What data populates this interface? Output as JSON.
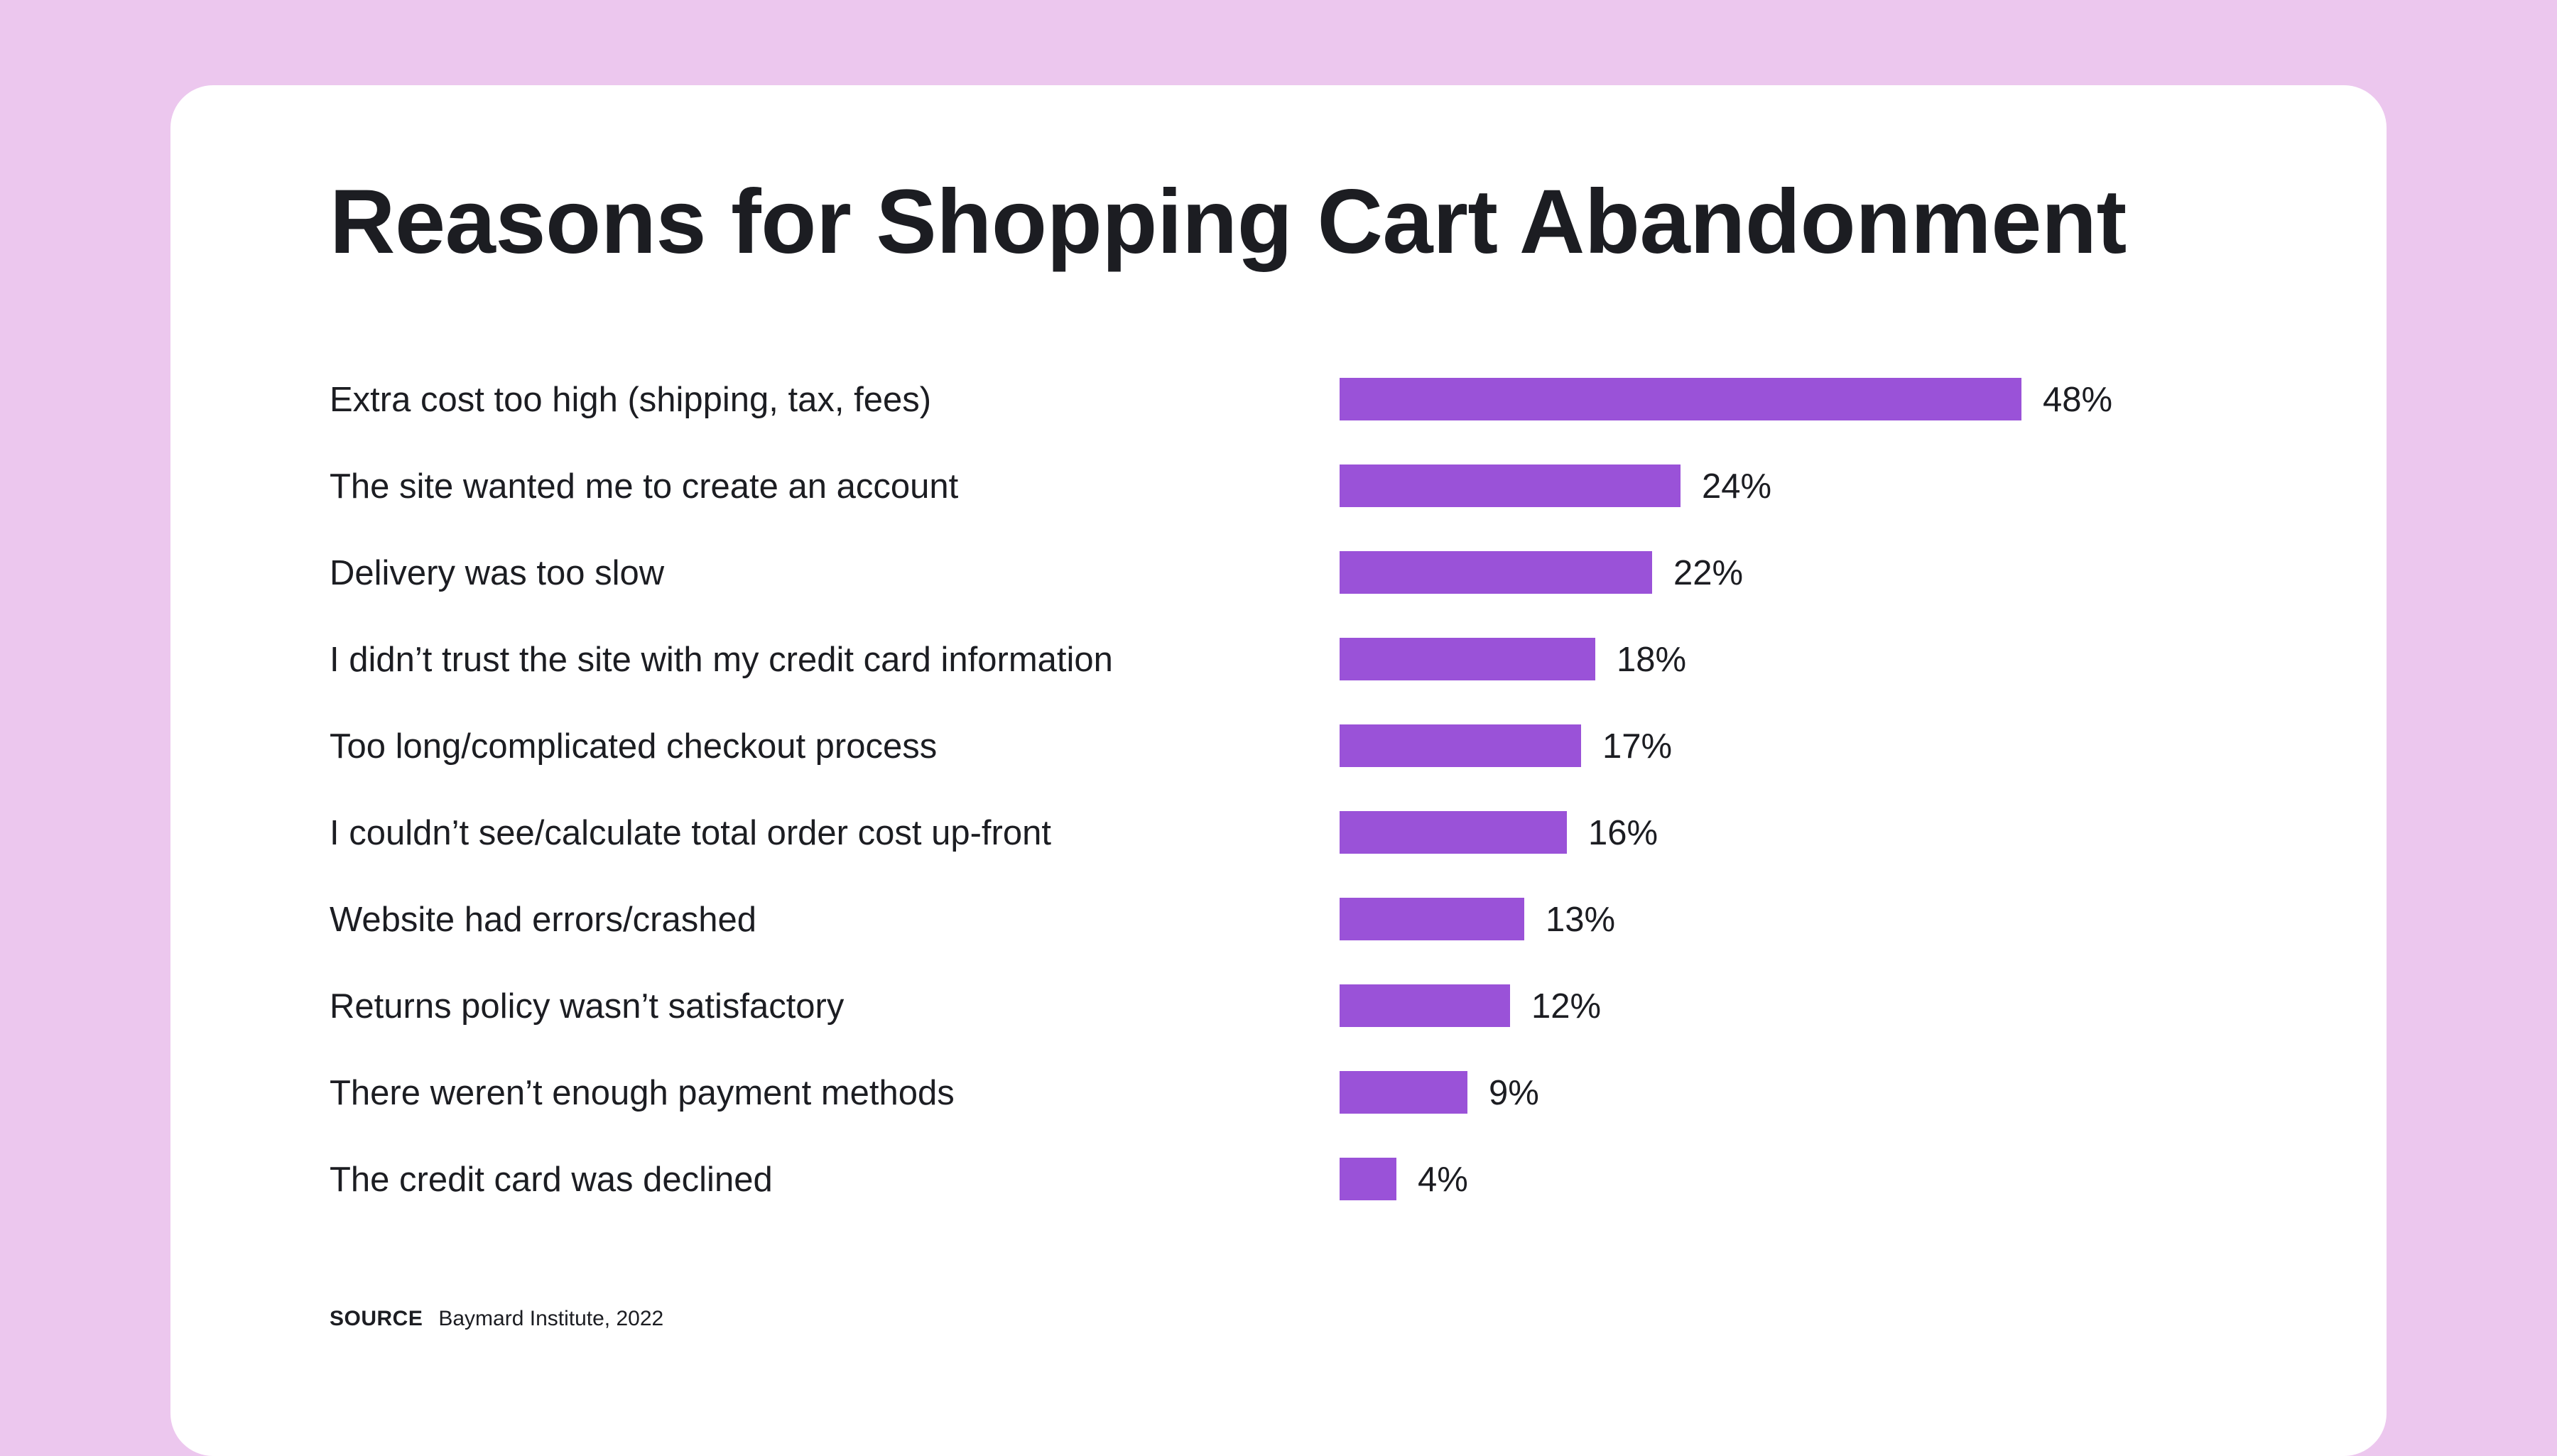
{
  "colors": {
    "page_background": "#ecc7ee",
    "card": "#ffffff",
    "bar": "#9a52d8",
    "text": "#1c1d22"
  },
  "chart_data": {
    "type": "bar",
    "orientation": "horizontal",
    "title": "Reasons for Shopping Cart Abandonment",
    "xlabel": "",
    "ylabel": "",
    "xlim": [
      0,
      48
    ],
    "grid": false,
    "legend": "none",
    "categories": [
      "Extra cost too high (shipping, tax, fees)",
      "The site wanted me to create an account",
      "Delivery was too slow",
      "I didn’t trust the site with my credit card information",
      "Too long/complicated checkout process",
      "I couldn’t see/calculate total order cost up-front",
      "Website had errors/crashed",
      "Returns policy wasn’t satisfactory",
      "There weren’t enough payment methods",
      "The credit card was declined"
    ],
    "values": [
      48,
      24,
      22,
      18,
      17,
      16,
      13,
      12,
      9,
      4
    ],
    "value_labels": [
      "48%",
      "24%",
      "22%",
      "18%",
      "17%",
      "16%",
      "13%",
      "12%",
      "9%",
      "4%"
    ]
  },
  "source": {
    "label": "SOURCE",
    "text": "Baymard Institute, 2022"
  }
}
